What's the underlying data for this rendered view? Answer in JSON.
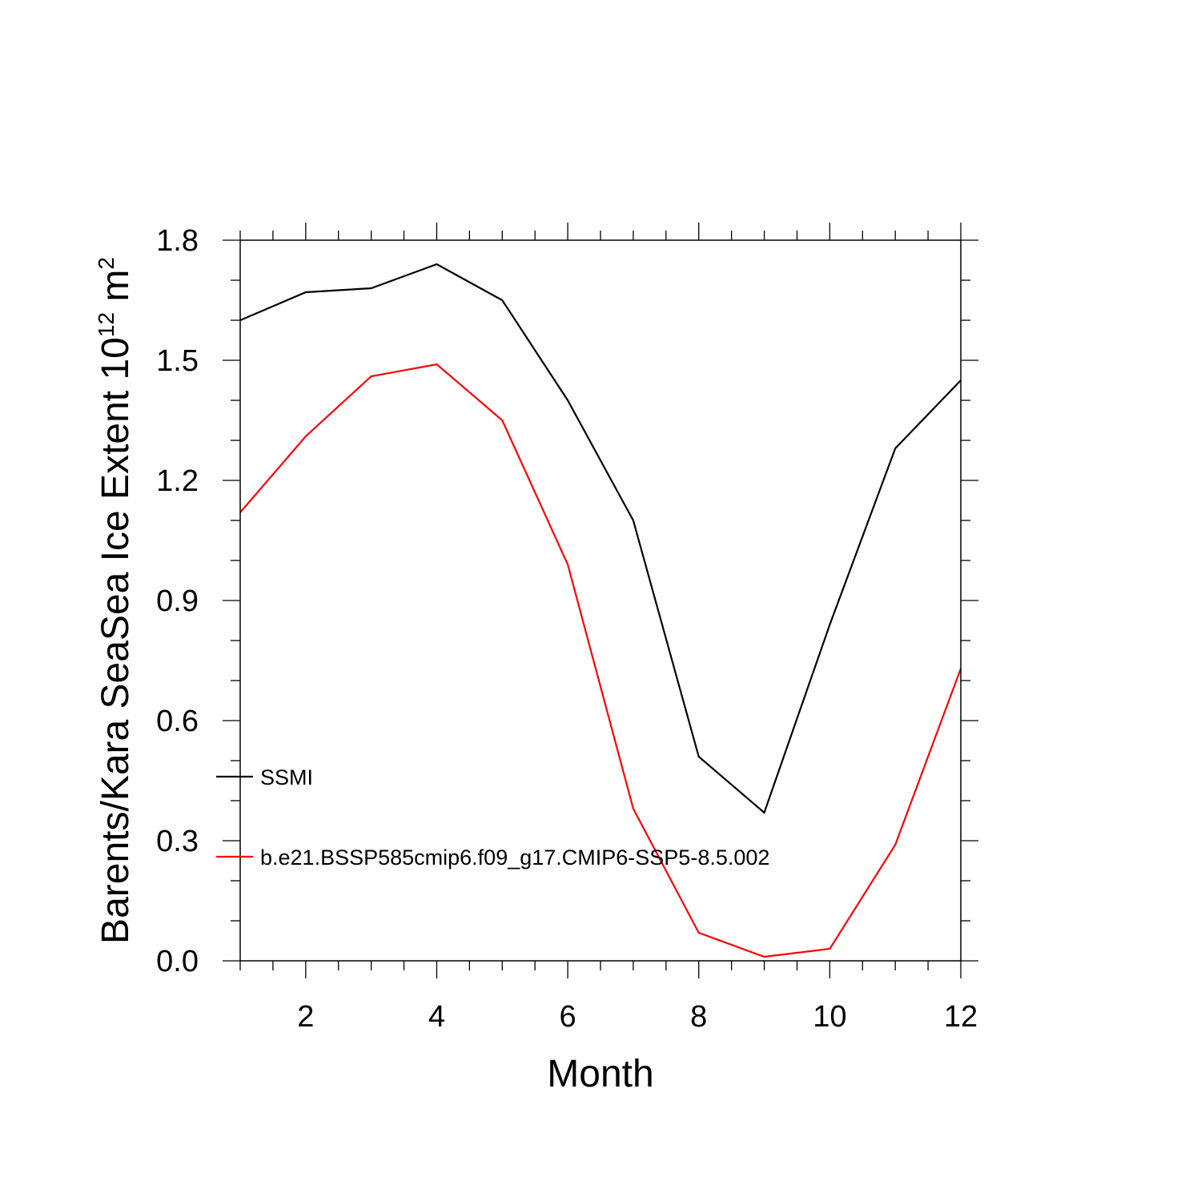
{
  "chart_data": {
    "type": "line",
    "xlabel": "Month",
    "ylabel": {
      "text": "Barents/Kara SeaSea Ice Extent 10",
      "exponent": "12",
      "unit": "m",
      "unit_exponent": "2"
    },
    "xlim": [
      1,
      12
    ],
    "ylim": [
      0,
      1.8
    ],
    "x_ticks": [
      2,
      4,
      6,
      8,
      10,
      12
    ],
    "x_tick_labels": [
      "2",
      "4",
      "6",
      "8",
      "10",
      "12"
    ],
    "y_ticks": [
      0,
      0.3,
      0.6,
      0.9,
      1.2,
      1.5,
      1.8
    ],
    "y_tick_labels": [
      "0.0",
      "0.3",
      "0.6",
      "0.9",
      "1.2",
      "1.5",
      "1.8"
    ],
    "grid": false,
    "legend_position": "lower-left",
    "x": [
      1,
      2,
      3,
      4,
      5,
      6,
      7,
      8,
      9,
      10,
      11,
      12
    ],
    "series": [
      {
        "name": "SSMI",
        "color": "#000000",
        "values": [
          1.6,
          1.67,
          1.68,
          1.74,
          1.65,
          1.4,
          1.1,
          0.51,
          0.37,
          0.84,
          1.28,
          1.45
        ]
      },
      {
        "name": "b.e21.BSSP585cmip6.f09_g17.CMIP6-SSP5-8.5.002",
        "color": "#ff0000",
        "values": [
          1.12,
          1.31,
          1.46,
          1.49,
          1.35,
          0.99,
          0.38,
          0.07,
          0.01,
          0.03,
          0.29,
          0.73
        ]
      }
    ]
  }
}
